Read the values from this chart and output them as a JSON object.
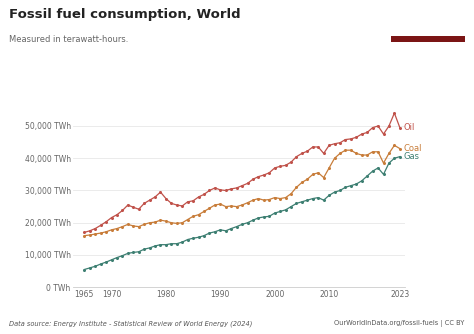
{
  "title": "Fossil fuel consumption, World",
  "subtitle": "Measured in terawatt-hours.",
  "footer_left": "Data source: Energy Institute - Statistical Review of World Energy (2024)",
  "footer_right": "OurWorldInData.org/fossil-fuels | CC BY",
  "logo_bg": "#c0392b",
  "logo_stripe": "#8b0000",
  "bg_color": "#ffffff",
  "plot_bg": "#ffffff",
  "grid_color": "#e8e8e8",
  "oil_color": "#c0524a",
  "coal_color": "#c87d3a",
  "gas_color": "#3d7f72",
  "ylim": [
    0,
    58000
  ],
  "yticks": [
    0,
    10000,
    20000,
    30000,
    40000,
    50000
  ],
  "ytick_labels": [
    "0 TWh",
    "10,000 TWh",
    "20,000 TWh",
    "30,000 TWh",
    "40,000 TWh",
    "50,000 TWh"
  ],
  "xticks": [
    1965,
    1970,
    1980,
    1990,
    2000,
    2010,
    2023
  ],
  "years": [
    1965,
    1966,
    1967,
    1968,
    1969,
    1970,
    1971,
    1972,
    1973,
    1974,
    1975,
    1976,
    1977,
    1978,
    1979,
    1980,
    1981,
    1982,
    1983,
    1984,
    1985,
    1986,
    1987,
    1988,
    1989,
    1990,
    1991,
    1992,
    1993,
    1994,
    1995,
    1996,
    1997,
    1998,
    1999,
    2000,
    2001,
    2002,
    2003,
    2004,
    2005,
    2006,
    2007,
    2008,
    2009,
    2010,
    2011,
    2012,
    2013,
    2014,
    2015,
    2016,
    2017,
    2018,
    2019,
    2020,
    2021,
    2022,
    2023
  ],
  "oil": [
    17000,
    17500,
    18200,
    19200,
    20300,
    21600,
    22500,
    23800,
    25500,
    24800,
    24200,
    26000,
    27000,
    28000,
    29500,
    27500,
    26000,
    25500,
    25200,
    26500,
    26800,
    28000,
    28800,
    30000,
    30800,
    30200,
    30000,
    30500,
    30800,
    31500,
    32200,
    33500,
    34300,
    34800,
    35500,
    37000,
    37500,
    37800,
    38800,
    40500,
    41500,
    42200,
    43500,
    43500,
    41500,
    44000,
    44500,
    44800,
    45800,
    46000,
    46500,
    47500,
    48000,
    49500,
    50000,
    47500,
    50000,
    54000,
    49500
  ],
  "coal": [
    16000,
    16200,
    16500,
    16800,
    17200,
    17800,
    18200,
    18800,
    19500,
    19000,
    18800,
    19500,
    20000,
    20200,
    20800,
    20500,
    20000,
    19800,
    20000,
    21000,
    22000,
    22500,
    23500,
    24500,
    25500,
    25800,
    25000,
    25200,
    25000,
    25500,
    26200,
    27000,
    27500,
    27000,
    27200,
    27800,
    27500,
    27800,
    29000,
    31000,
    32500,
    33500,
    35000,
    35500,
    34000,
    37000,
    40000,
    41500,
    42500,
    42500,
    41500,
    41000,
    41000,
    42000,
    42000,
    38500,
    41500,
    44000,
    43000
  ],
  "gas": [
    5500,
    6000,
    6500,
    7200,
    7800,
    8500,
    9200,
    9800,
    10500,
    10800,
    11000,
    11800,
    12200,
    12800,
    13200,
    13200,
    13500,
    13500,
    14000,
    14800,
    15200,
    15500,
    16000,
    16800,
    17200,
    17800,
    17500,
    18200,
    18800,
    19500,
    20000,
    20800,
    21500,
    21800,
    22000,
    23000,
    23500,
    24000,
    25000,
    26000,
    26500,
    27000,
    27500,
    27800,
    27000,
    28500,
    29500,
    30000,
    31000,
    31500,
    32000,
    33000,
    34500,
    36000,
    37000,
    35000,
    38500,
    40000,
    40500
  ]
}
